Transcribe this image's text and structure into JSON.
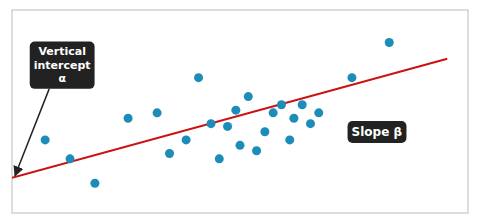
{
  "chart_data": {
    "type": "scatter",
    "series": [
      {
        "type": "scatter",
        "color": "#1b8db8",
        "x": [
          0.08,
          0.14,
          0.2,
          0.28,
          0.35,
          0.38,
          0.42,
          0.45,
          0.48,
          0.5,
          0.52,
          0.54,
          0.55,
          0.57,
          0.59,
          0.61,
          0.63,
          0.65,
          0.67,
          0.68,
          0.7,
          0.72,
          0.74,
          0.82,
          0.91
        ],
        "values": [
          0.52,
          0.45,
          0.36,
          0.6,
          0.62,
          0.47,
          0.52,
          0.75,
          0.58,
          0.45,
          0.57,
          0.63,
          0.5,
          0.68,
          0.48,
          0.55,
          0.62,
          0.65,
          0.52,
          0.6,
          0.65,
          0.58,
          0.62,
          0.75,
          0.88
        ]
      },
      {
        "type": "line",
        "color": "#cc1111",
        "x": [
          0.0,
          1.05
        ],
        "values": [
          0.38,
          0.82
        ]
      }
    ],
    "annotations": [
      "Vertical\nintercept\nα",
      "Slope β"
    ],
    "xlim": [
      0.0,
      1.1
    ],
    "ylim": [
      0.25,
      1.0
    ],
    "tick_labels": false
  }
}
